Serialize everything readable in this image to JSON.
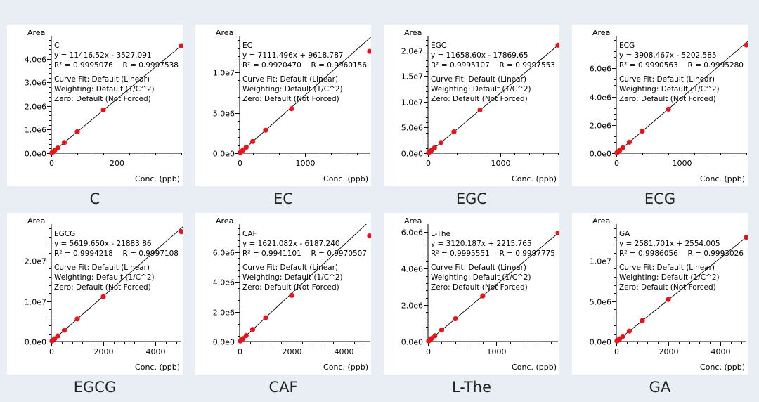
{
  "chart_data": [
    {
      "type": "scatter",
      "caption": "C",
      "name": "C",
      "ylabel": "Area",
      "xlabel": "Conc. (ppb)",
      "equation": "y = 11416.52x - 3527.091",
      "r2": "R² = 0.9995076",
      "r": "R = 0.9997538",
      "fit": "Curve Fit: Default (Linear)",
      "weighting": "Weighting: Default (1/C^2)",
      "zero": "Zero: Default (Not Forced)",
      "xlim": [
        0,
        400
      ],
      "ylim": [
        0,
        4800000
      ],
      "xticks": [
        {
          "v": 0,
          "label": "0"
        },
        {
          "v": 200,
          "label": "200"
        }
      ],
      "yticks": [
        {
          "v": 0,
          "label": "0.0e0"
        },
        {
          "v": 1000000,
          "label": "1.0e6"
        },
        {
          "v": 2000000,
          "label": "2.0e6"
        },
        {
          "v": 3000000,
          "label": "3.0e6"
        },
        {
          "v": 4000000,
          "label": "4.0e6"
        }
      ],
      "slope": 11416.52,
      "intercept": -3527.091,
      "x": [
        2,
        5,
        10,
        20,
        40,
        80,
        160,
        400
      ],
      "y": [
        20000,
        55000,
        110000,
        220000,
        450000,
        910000,
        1830000,
        4560000
      ]
    },
    {
      "type": "scatter",
      "caption": "EC",
      "name": "EC",
      "ylabel": "Area",
      "xlabel": "Conc. (ppb)",
      "equation": "y = 7111.496x + 9618.787",
      "r2": "R² = 0.9920470",
      "r": "R = 0.9960156",
      "fit": "Curve Fit: Default (Linear)",
      "weighting": "Weighting: Default (1/C^2)",
      "zero": "Zero: Default (Not Forced)",
      "xlim": [
        0,
        2000
      ],
      "ylim": [
        0,
        14000000
      ],
      "xticks": [
        {
          "v": 0,
          "label": "0"
        },
        {
          "v": 1000,
          "label": "1000"
        }
      ],
      "yticks": [
        {
          "v": 0,
          "label": "0.0e0"
        },
        {
          "v": 5000000,
          "label": "5.0e6"
        },
        {
          "v": 10000000,
          "label": "1.0e7"
        }
      ],
      "slope": 7111.496,
      "intercept": 9618.787,
      "x": [
        10,
        25,
        50,
        100,
        200,
        400,
        800,
        2000
      ],
      "y": [
        80000,
        190000,
        370000,
        720000,
        1450000,
        2850000,
        5500000,
        12600000
      ]
    },
    {
      "type": "scatter",
      "caption": "EGC",
      "name": "EGC",
      "ylabel": "Area",
      "xlabel": "Conc. (ppb)",
      "equation": "y = 11658.60x - 17869.65",
      "r2": "R² = 0.9995107",
      "r": "R = 0.9997553",
      "fit": "Curve Fit: Default (Linear)",
      "weighting": "Weighting: Default (1/C^2)",
      "zero": "Zero: Default (Not Forced)",
      "xlim": [
        0,
        1800
      ],
      "ylim": [
        0,
        22000000
      ],
      "xticks": [
        {
          "v": 0,
          "label": "0"
        },
        {
          "v": 1000,
          "label": "1000"
        }
      ],
      "yticks": [
        {
          "v": 0,
          "label": "0.0e0"
        },
        {
          "v": 5000000,
          "label": "5.0e6"
        },
        {
          "v": 10000000,
          "label": "1.0e7"
        },
        {
          "v": 15000000,
          "label": "1.5e7"
        },
        {
          "v": 20000000,
          "label": "2.0e7"
        }
      ],
      "slope": 11658.6,
      "intercept": -17869.65,
      "x": [
        9,
        22.5,
        45,
        90,
        180,
        360,
        720,
        1800
      ],
      "y": [
        100000,
        250000,
        510000,
        1040000,
        2080000,
        4180000,
        8400000,
        21000000
      ]
    },
    {
      "type": "scatter",
      "caption": "ECG",
      "name": "ECG",
      "ylabel": "Area",
      "xlabel": "Conc. (ppb)",
      "equation": "y = 3908.467x - 5202.585",
      "r2": "R² = 0.9990563",
      "r": "R = 0.9995280",
      "fit": "Curve Fit: Default (Linear)",
      "weighting": "Weighting: Default (1/C^2)",
      "zero": "Zero: Default (Not Forced)",
      "xlim": [
        0,
        2000
      ],
      "ylim": [
        0,
        8000000
      ],
      "xticks": [
        {
          "v": 0,
          "label": "0"
        },
        {
          "v": 1000,
          "label": "1000"
        }
      ],
      "yticks": [
        {
          "v": 0,
          "label": "0.0e0"
        },
        {
          "v": 2000000,
          "label": "2.0e6"
        },
        {
          "v": 4000000,
          "label": "4.0e6"
        },
        {
          "v": 6000000,
          "label": "6.0e6"
        }
      ],
      "slope": 3908.467,
      "intercept": -5202.585,
      "x": [
        10,
        25,
        50,
        100,
        200,
        400,
        800,
        2000
      ],
      "y": [
        40000,
        95000,
        190000,
        385000,
        780000,
        1560000,
        3110000,
        7650000
      ]
    },
    {
      "type": "scatter",
      "caption": "EGCG",
      "name": "EGCG",
      "ylabel": "Area",
      "xlabel": "Conc. (ppb)",
      "equation": "y = 5619.650x - 21883.86",
      "r2": "R² = 0.9994218",
      "r": "R = 0.9997108",
      "fit": "Curve Fit: Default (Linear)",
      "weighting": "Weighting: Default (1/C^2)",
      "zero": "Zero: Default (Not Forced)",
      "xlim": [
        0,
        5000
      ],
      "ylim": [
        0,
        28000000
      ],
      "xticks": [
        {
          "v": 0,
          "label": "0"
        },
        {
          "v": 2000,
          "label": "2000"
        },
        {
          "v": 4000,
          "label": "4000"
        }
      ],
      "yticks": [
        {
          "v": 0,
          "label": "0.0e0"
        },
        {
          "v": 10000000,
          "label": "1.0e7"
        },
        {
          "v": 20000000,
          "label": "2.0e7"
        }
      ],
      "slope": 5619.65,
      "intercept": -21883.86,
      "x": [
        25,
        62.5,
        125,
        250,
        500,
        1000,
        2000,
        5000
      ],
      "y": [
        130000,
        330000,
        680000,
        1380000,
        2800000,
        5600000,
        11100000,
        27200000
      ]
    },
    {
      "type": "scatter",
      "caption": "CAF",
      "name": "CAF",
      "ylabel": "Area",
      "xlabel": "Conc. (ppb)",
      "equation": "y = 1621.082x - 6187.240",
      "r2": "R² = 0.9941101",
      "r": "R = 0.9970507",
      "fit": "Curve Fit: Default (Linear)",
      "weighting": "Weighting: Default (1/C^2)",
      "zero": "Zero: Default (Not Forced)",
      "xlim": [
        0,
        5000
      ],
      "ylim": [
        0,
        7600000
      ],
      "xticks": [
        {
          "v": 0,
          "label": "0"
        },
        {
          "v": 2000,
          "label": "2000"
        },
        {
          "v": 4000,
          "label": "4000"
        }
      ],
      "yticks": [
        {
          "v": 0,
          "label": "0.0e0"
        },
        {
          "v": 2000000,
          "label": "2.0e6"
        },
        {
          "v": 4000000,
          "label": "4.0e6"
        },
        {
          "v": 6000000,
          "label": "6.0e6"
        }
      ],
      "slope": 1621.082,
      "intercept": -6187.24,
      "x": [
        25,
        62.5,
        125,
        250,
        500,
        1000,
        2000,
        5000
      ],
      "y": [
        35000,
        95000,
        195000,
        400000,
        810000,
        1600000,
        3100000,
        7100000
      ]
    },
    {
      "type": "scatter",
      "caption": "L-The",
      "name": "L-The",
      "ylabel": "Area",
      "xlabel": "Conc. (ppb)",
      "equation": "y = 3120.187x + 2215.765",
      "r2": "R² = 0.9995551",
      "r": "R = 0.9997775",
      "fit": "Curve Fit: Default (Linear)",
      "weighting": "Weighting: Default (1/C^2)",
      "zero": "Zero: Default (Not Forced)",
      "xlim": [
        0,
        1900
      ],
      "ylim": [
        0,
        6200000
      ],
      "xticks": [
        {
          "v": 0,
          "label": "0"
        },
        {
          "v": 1000,
          "label": "1000"
        }
      ],
      "yticks": [
        {
          "v": 0,
          "label": "0.0e0"
        },
        {
          "v": 2000000,
          "label": "2.0e6"
        },
        {
          "v": 4000000,
          "label": "4.0e6"
        },
        {
          "v": 6000000,
          "label": "6.0e6"
        }
      ],
      "slope": 3120.187,
      "intercept": 2215.765,
      "x": [
        10,
        25,
        50,
        100,
        200,
        400,
        800,
        1900
      ],
      "y": [
        33000,
        80000,
        160000,
        315000,
        630000,
        1250000,
        2500000,
        5950000
      ]
    },
    {
      "type": "scatter",
      "caption": "GA",
      "name": "GA",
      "ylabel": "Area",
      "xlabel": "Conc. (ppb)",
      "equation": "y = 2581.701x + 2554.005",
      "r2": "R² = 0.9986056",
      "r": "R = 0.9993026",
      "fit": "Curve Fit: Default (Linear)",
      "weighting": "Weighting: Default (1/C^2)",
      "zero": "Zero: Default (Not Forced)",
      "xlim": [
        0,
        5000
      ],
      "ylim": [
        0,
        14000000
      ],
      "xticks": [
        {
          "v": 0,
          "label": "0"
        },
        {
          "v": 2000,
          "label": "2000"
        },
        {
          "v": 4000,
          "label": "4000"
        }
      ],
      "yticks": [
        {
          "v": 0,
          "label": "0.0e0"
        },
        {
          "v": 5000000,
          "label": "5.0e6"
        },
        {
          "v": 10000000,
          "label": "1.0e7"
        }
      ],
      "slope": 2581.701,
      "intercept": 2554.005,
      "x": [
        25,
        62.5,
        125,
        250,
        500,
        1000,
        2000,
        5000
      ],
      "y": [
        70000,
        165000,
        330000,
        650000,
        1300000,
        2600000,
        5200000,
        12900000
      ]
    }
  ],
  "colors": {
    "background": "#e8eef3",
    "panel": "#ffffff",
    "point": "#e8141c",
    "line": "#000000"
  }
}
